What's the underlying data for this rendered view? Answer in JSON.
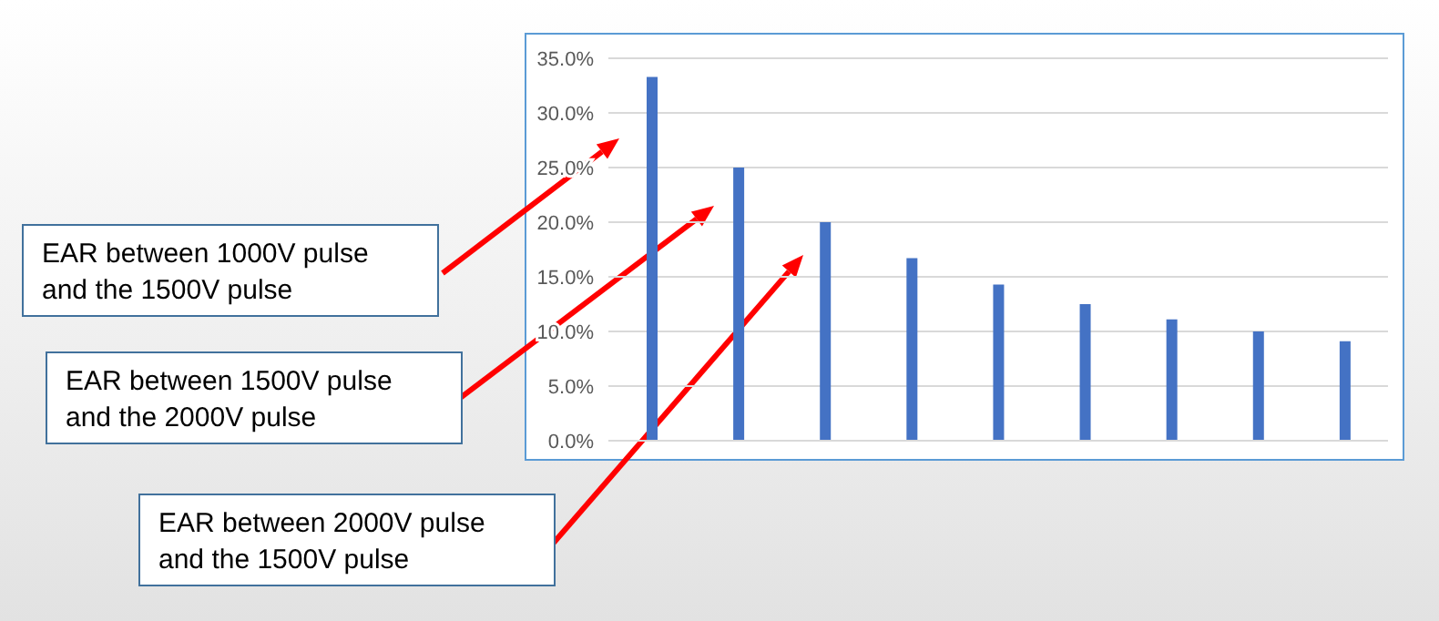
{
  "chart_data": {
    "type": "bar",
    "categories": [
      null,
      null,
      null,
      null,
      null,
      null,
      null,
      null,
      null
    ],
    "values": [
      33.3,
      25.0,
      20.0,
      16.7,
      14.3,
      12.5,
      11.1,
      10.0,
      9.1
    ],
    "color": "#4472c4",
    "ylim": [
      0,
      35
    ],
    "yticks": [
      {
        "value": 0,
        "label": "0.0%"
      },
      {
        "value": 5,
        "label": "5.0%"
      },
      {
        "value": 10,
        "label": "10.0%"
      },
      {
        "value": 15,
        "label": "15.0%"
      },
      {
        "value": 20,
        "label": "20.0%"
      },
      {
        "value": 25,
        "label": "25.0%"
      },
      {
        "value": 30,
        "label": "30.0%"
      },
      {
        "value": 35,
        "label": "35.0%"
      }
    ],
    "grid": "y",
    "annotations": [
      "EAR between 1000V pulse and the 1500V pulse",
      "EAR between 1500V pulse and the 2000V pulse",
      "EAR between 2000V pulse and the 1500V pulse"
    ]
  }
}
